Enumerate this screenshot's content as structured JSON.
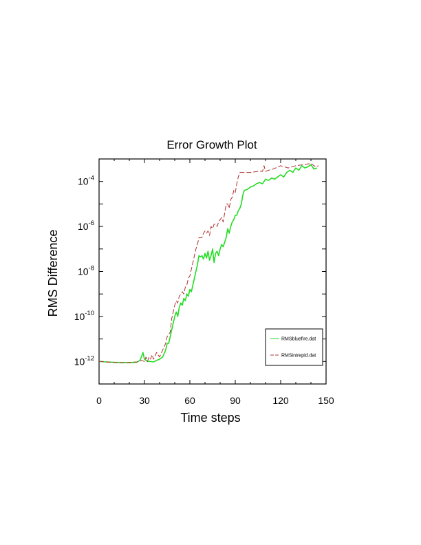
{
  "chart_data": {
    "type": "line",
    "title": "Error Growth Plot",
    "xlabel": "Time steps",
    "ylabel": "RMS Difference",
    "xlim": [
      0,
      150
    ],
    "ylim_log10": [
      -13,
      -3
    ],
    "yscale": "log",
    "grid": false,
    "legend_position": "bottom-right",
    "xticks": [
      0,
      30,
      60,
      90,
      120,
      150
    ],
    "xtick_labels": [
      "0",
      "30",
      "60",
      "90",
      "120",
      "150"
    ],
    "yticks_log10": [
      -12,
      -10,
      -8,
      -6,
      -4
    ],
    "ytick_base": "10",
    "ytick_exponents": [
      "-12",
      "-10",
      "-8",
      "-6",
      "-4"
    ],
    "series": [
      {
        "name": "RMSbluefire.dat",
        "color": "#22dd22",
        "dash": "solid",
        "x": [
          0,
          5,
          10,
          15,
          20,
          25,
          27,
          28,
          29,
          30,
          32,
          34,
          36,
          38,
          40,
          42,
          44,
          45,
          46,
          47,
          48,
          49,
          50,
          51,
          52,
          53,
          54,
          55,
          56,
          57,
          58,
          59,
          60,
          61,
          62,
          63,
          64,
          65,
          66,
          67,
          68,
          69,
          70,
          71,
          72,
          73,
          74,
          75,
          76,
          77,
          78,
          79,
          80,
          81,
          82,
          83,
          84,
          85,
          86,
          87,
          88,
          89,
          90,
          91,
          92,
          93,
          94,
          95,
          96,
          98,
          100,
          102,
          104,
          106,
          108,
          110,
          112,
          114,
          116,
          118,
          120,
          122,
          124,
          126,
          128,
          130,
          132,
          134,
          136,
          138,
          140,
          142,
          144
        ],
        "log10_y": [
          -12.0,
          -12.02,
          -12.04,
          -12.05,
          -12.05,
          -12.03,
          -11.95,
          -11.8,
          -11.6,
          -11.9,
          -12.0,
          -12.0,
          -12.02,
          -11.95,
          -11.9,
          -11.8,
          -11.5,
          -11.2,
          -11.2,
          -10.9,
          -10.6,
          -10.3,
          -10.0,
          -9.8,
          -10.0,
          -9.6,
          -9.4,
          -9.5,
          -9.2,
          -9.3,
          -9.0,
          -9.1,
          -8.8,
          -8.9,
          -8.6,
          -8.3,
          -8.0,
          -7.7,
          -7.3,
          -7.35,
          -7.3,
          -7.45,
          -7.2,
          -7.4,
          -7.1,
          -7.5,
          -7.3,
          -7.0,
          -7.6,
          -7.2,
          -7.1,
          -7.3,
          -7.0,
          -6.8,
          -6.9,
          -6.7,
          -6.5,
          -6.1,
          -6.3,
          -6.0,
          -5.8,
          -5.7,
          -5.5,
          -5.5,
          -5.3,
          -5.2,
          -5.0,
          -4.6,
          -4.4,
          -4.35,
          -4.25,
          -4.2,
          -4.1,
          -4.05,
          -4.1,
          -3.9,
          -3.95,
          -3.85,
          -3.9,
          -3.8,
          -3.7,
          -3.8,
          -3.6,
          -3.5,
          -3.6,
          -3.4,
          -3.5,
          -3.3,
          -3.4,
          -3.35,
          -3.25,
          -3.45,
          -3.4
        ]
      },
      {
        "name": "RMSintrepid.dat",
        "color": "#b03030",
        "dash": "dashed",
        "x": [
          0,
          5,
          10,
          15,
          20,
          25,
          28,
          30,
          31,
          32,
          33,
          34,
          35,
          36,
          38,
          40,
          42,
          44,
          45,
          46,
          47,
          48,
          49,
          50,
          51,
          52,
          53,
          54,
          55,
          56,
          57,
          58,
          59,
          60,
          61,
          62,
          63,
          64,
          65,
          66,
          67,
          68,
          69,
          70,
          71,
          72,
          73,
          74,
          75,
          76,
          77,
          78,
          79,
          80,
          81,
          82,
          83,
          84,
          85,
          86,
          87,
          88,
          89,
          90,
          91,
          92,
          93,
          95,
          100,
          105,
          108,
          109,
          110,
          112,
          115,
          120,
          125,
          130,
          135,
          140,
          143,
          145
        ],
        "log10_y": [
          -12.0,
          -12.02,
          -12.04,
          -12.05,
          -12.05,
          -12.02,
          -11.95,
          -12.0,
          -11.8,
          -12.0,
          -11.8,
          -11.9,
          -11.7,
          -11.9,
          -11.6,
          -11.8,
          -11.5,
          -11.2,
          -10.9,
          -10.8,
          -10.7,
          -10.1,
          -9.8,
          -9.5,
          -9.3,
          -9.4,
          -9.1,
          -9.0,
          -8.9,
          -9.0,
          -8.7,
          -8.6,
          -8.3,
          -8.2,
          -7.9,
          -7.6,
          -7.3,
          -7.0,
          -6.8,
          -6.5,
          -6.5,
          -6.5,
          -6.3,
          -6.2,
          -6.3,
          -6.2,
          -6.4,
          -6.0,
          -6.1,
          -5.9,
          -5.9,
          -6.0,
          -5.8,
          -5.7,
          -5.6,
          -5.8,
          -5.4,
          -5.0,
          -5.0,
          -5.2,
          -4.8,
          -4.7,
          -4.4,
          -4.5,
          -4.1,
          -3.8,
          -3.6,
          -3.6,
          -3.6,
          -3.55,
          -3.55,
          -3.3,
          -3.55,
          -3.5,
          -3.45,
          -3.3,
          -3.4,
          -3.3,
          -3.25,
          -3.2,
          -3.35,
          -3.3
        ]
      }
    ]
  }
}
